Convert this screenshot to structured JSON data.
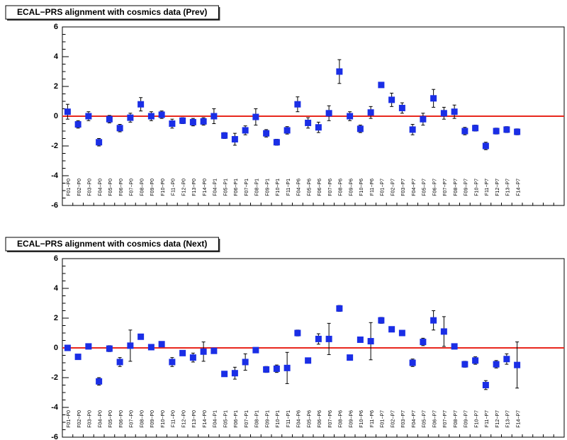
{
  "chart_data": [
    {
      "type": "errorbar",
      "title": "ECAL−PRS alignment with cosmics data (Prev)",
      "categories": [
        "F01−P0",
        "F02−P0",
        "F03−P0",
        "F04−P0",
        "F05−P0",
        "F06−P0",
        "F07−P0",
        "F08−P0",
        "F09−P0",
        "F10−P0",
        "F11−P0",
        "F12−P0",
        "F13−P0",
        "F14−P0",
        "F04−P1",
        "F05−P1",
        "F06−P1",
        "F07−P1",
        "F08−P1",
        "F09−P1",
        "F10−P1",
        "F11−P1",
        "F04−P6",
        "F05−P6",
        "F06−P6",
        "F07−P6",
        "F08−P6",
        "F09−P6",
        "F10−P6",
        "F11−P6",
        "F01−P7",
        "F02−P7",
        "F03−P7",
        "F04−P7",
        "F05−P7",
        "F06−P7",
        "F07−P7",
        "F08−P7",
        "F09−P7",
        "F10−P7",
        "F11−P7",
        "F12−P7",
        "F13−P7",
        "F14−P7",
        null,
        null,
        null,
        null
      ],
      "values": [
        0.3,
        -0.55,
        0.0,
        -1.75,
        -0.2,
        -0.8,
        -0.1,
        0.8,
        0.0,
        0.1,
        -0.5,
        -0.3,
        -0.4,
        -0.35,
        0.0,
        -1.3,
        -1.55,
        -0.95,
        -0.05,
        -1.15,
        -1.75,
        -0.95,
        0.8,
        -0.45,
        -0.75,
        0.2,
        3.0,
        0.0,
        -0.85,
        0.25,
        2.1,
        1.1,
        0.55,
        -0.9,
        -0.2,
        1.2,
        0.2,
        0.3,
        -1.0,
        -0.8,
        -2.0,
        -1.0,
        -0.9,
        -1.05,
        null,
        null,
        null,
        null
      ],
      "errors": [
        0.5,
        0.25,
        0.3,
        0.25,
        0.25,
        0.25,
        0.3,
        0.45,
        0.3,
        0.25,
        0.3,
        0.2,
        0.25,
        0.25,
        0.5,
        0.2,
        0.4,
        0.3,
        0.55,
        0.25,
        0.2,
        0.25,
        0.5,
        0.35,
        0.35,
        0.5,
        0.8,
        0.3,
        0.25,
        0.4,
        0.1,
        0.45,
        0.35,
        0.35,
        0.4,
        0.6,
        0.4,
        0.45,
        0.25,
        0.2,
        0.25,
        0.2,
        0.2,
        0.2,
        null,
        null,
        null,
        null
      ],
      "color": "#1a2ee6",
      "error_color": "#000000",
      "ylim": [
        -6,
        6
      ],
      "yticks": [
        -6,
        -4,
        -2,
        0,
        2,
        4,
        6
      ],
      "hline": 0,
      "hline_color": "#e8281e"
    },
    {
      "type": "errorbar",
      "title": "ECAL−PRS alignment with cosmics data (Next)",
      "categories": [
        "F01−P0",
        "F02−P0",
        "F03−P0",
        "F04−P0",
        "F05−P0",
        "F06−P0",
        "F07−P0",
        "F08−P0",
        "F09−P0",
        "F10−P0",
        "F11−P0",
        "F12−P0",
        "F13−P0",
        "F14−P0",
        "F04−P1",
        "F05−P1",
        "F06−P1",
        "F07−P1",
        "F08−P1",
        "F09−P1",
        "F10−P1",
        "F11−P1",
        "F04−P6",
        "F05−P6",
        "F06−P6",
        "F07−P6",
        "F08−P6",
        "F09−P6",
        "F10−P6",
        "F11−P6",
        "F01−P7",
        "F02−P7",
        "F03−P7",
        "F04−P7",
        "F05−P7",
        "F06−P7",
        "F07−P7",
        "F08−P7",
        "F09−P7",
        "F10−P7",
        "F11−P7",
        "F12−P7",
        "F13−P7",
        "F14−P7",
        null,
        null,
        null,
        null
      ],
      "values": [
        0.0,
        -0.6,
        0.1,
        -2.25,
        -0.05,
        -0.95,
        0.15,
        0.75,
        0.05,
        0.25,
        -0.95,
        -0.35,
        -0.65,
        -0.25,
        -0.2,
        -1.75,
        -1.7,
        -0.95,
        -0.15,
        -1.45,
        -1.4,
        -1.35,
        1.0,
        -0.85,
        0.6,
        0.6,
        2.65,
        -0.65,
        0.55,
        0.45,
        1.85,
        1.25,
        1.0,
        -1.0,
        0.4,
        1.85,
        1.1,
        0.1,
        -1.1,
        -0.85,
        -2.5,
        -1.1,
        -0.75,
        -1.15,
        null,
        null,
        null,
        null
      ],
      "errors": [
        0.15,
        0.1,
        0.15,
        0.25,
        0.2,
        0.3,
        1.05,
        0.1,
        0.1,
        0.1,
        0.3,
        0.1,
        0.3,
        0.65,
        0.1,
        0.15,
        0.4,
        0.55,
        0.1,
        0.2,
        0.25,
        1.05,
        0.2,
        0.1,
        0.35,
        1.05,
        0.2,
        0.1,
        0.1,
        1.25,
        0.2,
        0.15,
        0.1,
        0.25,
        0.25,
        0.65,
        1.0,
        0.15,
        0.2,
        0.25,
        0.3,
        0.25,
        0.35,
        1.55,
        null,
        null,
        null,
        null
      ],
      "color": "#1a2ee6",
      "error_color": "#000000",
      "ylim": [
        -6,
        6
      ],
      "yticks": [
        -6,
        -4,
        -2,
        0,
        2,
        4,
        6
      ],
      "hline": 0,
      "hline_color": "#e8281e"
    }
  ]
}
